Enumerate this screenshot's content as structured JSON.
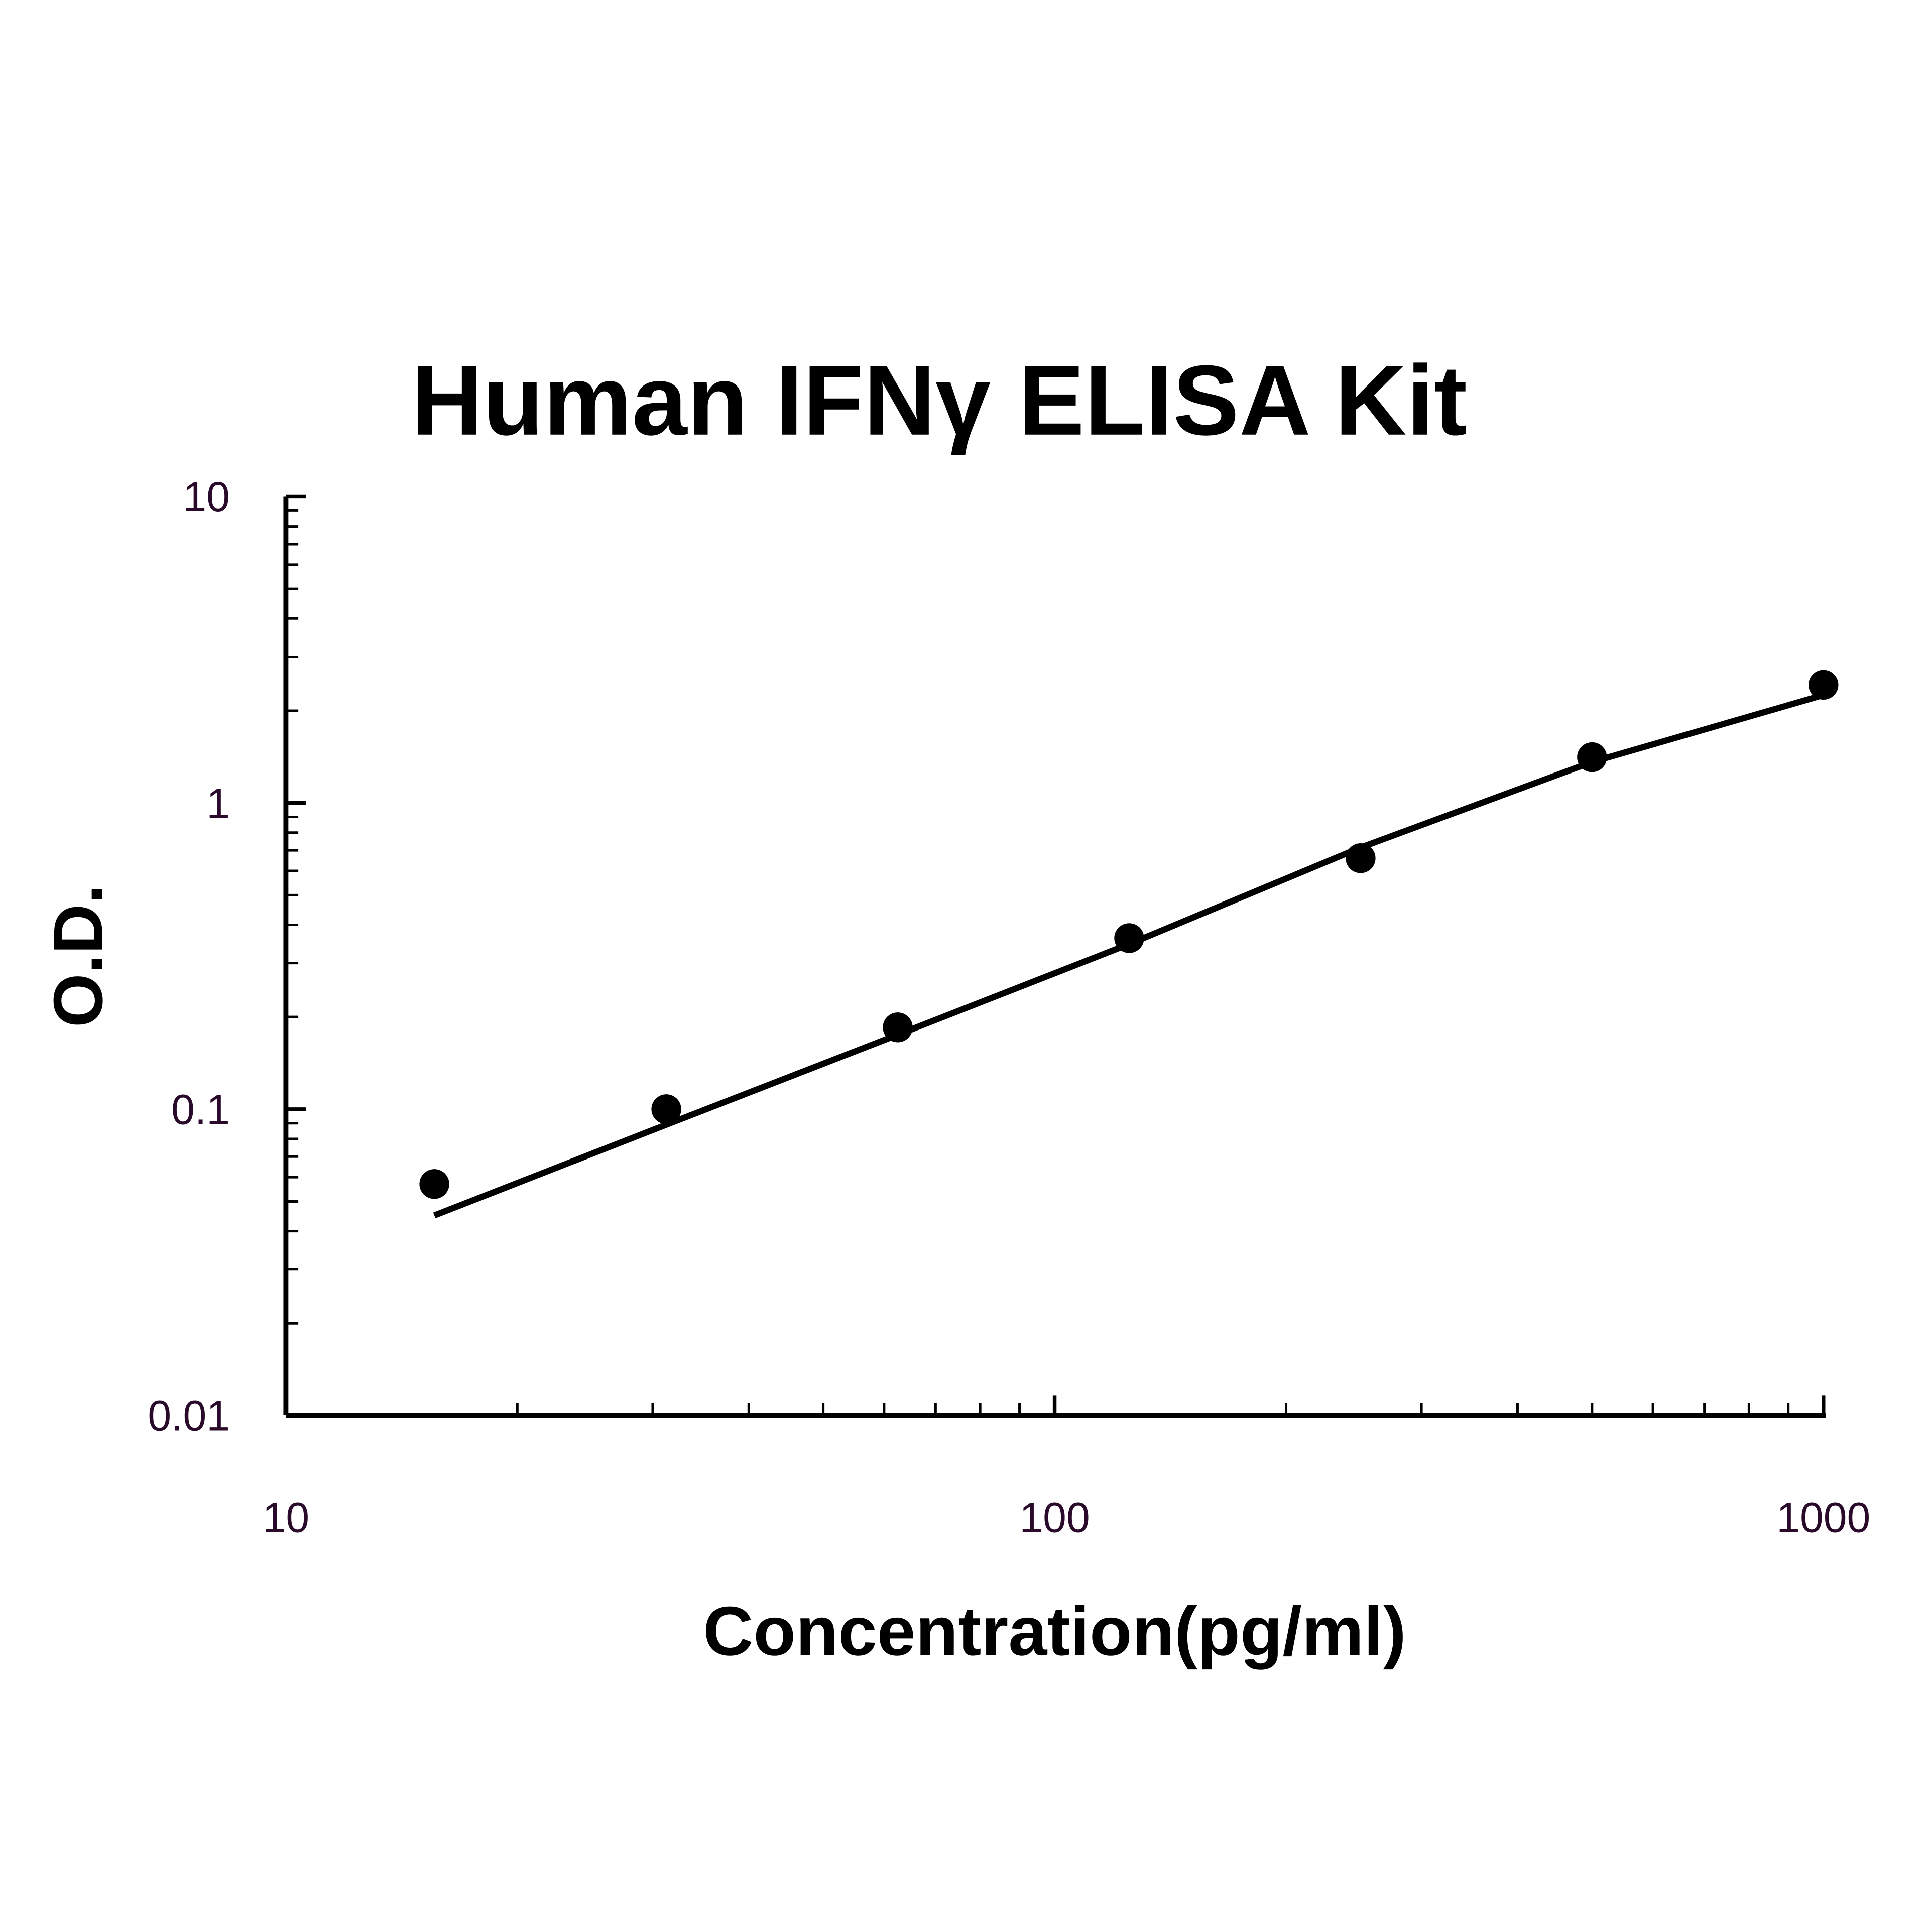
{
  "chart_data": {
    "type": "scatter",
    "title": "Human IFNγ ELISA Kit",
    "x_label": "Concentration(pg/ml)",
    "y_label": "O.D.",
    "x": [
      15.6,
      31.25,
      62.5,
      125,
      250,
      500,
      1000
    ],
    "series": [
      {
        "color": "#000000",
        "style": "markers",
        "values": [
          0.057,
          0.1,
          0.185,
          0.362,
          0.66,
          1.41,
          2.43
        ]
      },
      {
        "color": "#000000",
        "style": "line",
        "values": [
          0.045,
          0.089,
          0.175,
          0.346,
          0.715,
          1.36,
          2.25
        ]
      }
    ],
    "xlim": [
      10,
      1000
    ],
    "ylim": [
      0.01,
      10
    ],
    "xticks": [
      10,
      100,
      1000
    ],
    "yticks": [
      0.01,
      0.1,
      1,
      10
    ],
    "xscale": "log",
    "yscale": "log",
    "minor_ticks": true,
    "grid": false
  }
}
